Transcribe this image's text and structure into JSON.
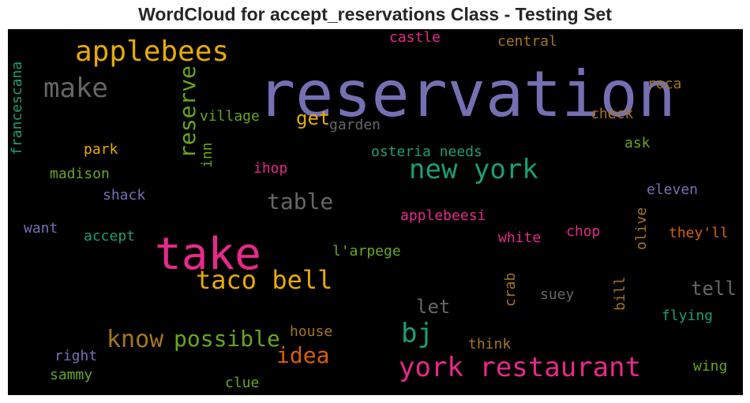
{
  "chart_data": {
    "type": "wordcloud",
    "title": "WordCloud for accept_reservations Class - Testing Set",
    "background": "#000000",
    "words": [
      {
        "text": "reservation",
        "color": "#7570b3",
        "orientation": "horizontal"
      },
      {
        "text": "take",
        "color": "#e7298a",
        "orientation": "horizontal"
      },
      {
        "text": "applebees",
        "color": "#e6ab02",
        "orientation": "horizontal"
      },
      {
        "text": "new york",
        "color": "#1b9e77",
        "orientation": "horizontal"
      },
      {
        "text": "taco bell",
        "color": "#e6ab02",
        "orientation": "horizontal"
      },
      {
        "text": "york restaurant",
        "color": "#e7298a",
        "orientation": "horizontal"
      },
      {
        "text": "make",
        "color": "#666666",
        "orientation": "horizontal"
      },
      {
        "text": "reserve",
        "color": "#66a61e",
        "orientation": "vertical"
      },
      {
        "text": "bj",
        "color": "#1b9e77",
        "orientation": "horizontal"
      },
      {
        "text": "know",
        "color": "#a6761d",
        "orientation": "horizontal"
      },
      {
        "text": "possible",
        "color": "#66a61e",
        "orientation": "horizontal"
      },
      {
        "text": "table",
        "color": "#666666",
        "orientation": "horizontal"
      },
      {
        "text": "idea",
        "color": "#d95f02",
        "orientation": "horizontal"
      },
      {
        "text": "get",
        "color": "#e6ab02",
        "orientation": "horizontal"
      },
      {
        "text": "tell",
        "color": "#666666",
        "orientation": "horizontal"
      },
      {
        "text": "let",
        "color": "#666666",
        "orientation": "horizontal"
      },
      {
        "text": "francescana",
        "color": "#1b9e77",
        "orientation": "vertical"
      },
      {
        "text": "castle",
        "color": "#e7298a",
        "orientation": "horizontal"
      },
      {
        "text": "central",
        "color": "#a6761d",
        "orientation": "horizontal"
      },
      {
        "text": "roca",
        "color": "#a6761d",
        "orientation": "horizontal"
      },
      {
        "text": "village",
        "color": "#66a61e",
        "orientation": "horizontal"
      },
      {
        "text": "garden",
        "color": "#666666",
        "orientation": "horizontal"
      },
      {
        "text": "check",
        "color": "#a6761d",
        "orientation": "horizontal"
      },
      {
        "text": "inn",
        "color": "#66a61e",
        "orientation": "vertical"
      },
      {
        "text": "park",
        "color": "#e6ab02",
        "orientation": "horizontal"
      },
      {
        "text": "osteria needs",
        "color": "#1b9e77",
        "orientation": "horizontal"
      },
      {
        "text": "ask",
        "color": "#66a61e",
        "orientation": "horizontal"
      },
      {
        "text": "madison",
        "color": "#66a61e",
        "orientation": "horizontal"
      },
      {
        "text": "ihop",
        "color": "#e7298a",
        "orientation": "horizontal"
      },
      {
        "text": "shack",
        "color": "#7570b3",
        "orientation": "horizontal"
      },
      {
        "text": "eleven",
        "color": "#7570b3",
        "orientation": "horizontal"
      },
      {
        "text": "applebeesi",
        "color": "#e7298a",
        "orientation": "horizontal"
      },
      {
        "text": "olive",
        "color": "#a6761d",
        "orientation": "vertical"
      },
      {
        "text": "want",
        "color": "#7570b3",
        "orientation": "horizontal"
      },
      {
        "text": "accept",
        "color": "#1b9e77",
        "orientation": "horizontal"
      },
      {
        "text": "chop",
        "color": "#e7298a",
        "orientation": "horizontal"
      },
      {
        "text": "white",
        "color": "#e7298a",
        "orientation": "horizontal"
      },
      {
        "text": "they'll",
        "color": "#d95f02",
        "orientation": "horizontal"
      },
      {
        "text": "l'arpege",
        "color": "#66a61e",
        "orientation": "horizontal"
      },
      {
        "text": "crab",
        "color": "#a6761d",
        "orientation": "vertical"
      },
      {
        "text": "bill",
        "color": "#a6761d",
        "orientation": "vertical"
      },
      {
        "text": "suey",
        "color": "#666666",
        "orientation": "horizontal"
      },
      {
        "text": "flying",
        "color": "#1b9e77",
        "orientation": "horizontal"
      },
      {
        "text": "house",
        "color": "#a6761d",
        "orientation": "horizontal"
      },
      {
        "text": "think",
        "color": "#a6761d",
        "orientation": "horizontal"
      },
      {
        "text": "right",
        "color": "#7570b3",
        "orientation": "horizontal"
      },
      {
        "text": "sammy",
        "color": "#66a61e",
        "orientation": "horizontal"
      },
      {
        "text": "clue",
        "color": "#66a61e",
        "orientation": "horizontal"
      },
      {
        "text": "wing",
        "color": "#66a61e",
        "orientation": "horizontal"
      }
    ]
  }
}
